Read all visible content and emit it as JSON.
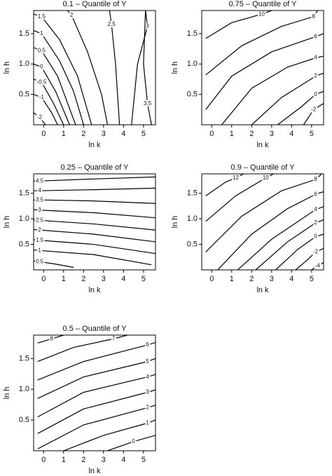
{
  "chart_data": [
    {
      "type": "contour",
      "title": "0.1 – Quantile of Y",
      "xlabel": "ln k",
      "ylabel": "ln h",
      "xlim": [
        -0.5,
        5.6
      ],
      "ylim": [
        0,
        1.88
      ],
      "xticks": [
        0,
        1,
        2,
        3,
        4,
        5
      ],
      "yticks": [
        0.5,
        {
          "value": 1,
          "label": "1.0"
        },
        1.5
      ],
      "contours": [
        {
          "level": 1.5,
          "x": [
            2.4,
            1.7,
            0.8,
            -0.1,
            -0.5
          ],
          "y": [
            0,
            0.8,
            1.4,
            1.78,
            1.82
          ]
        },
        {
          "level": 1,
          "x": [
            2.0,
            1.5,
            0.8,
            -0.1,
            -0.5
          ],
          "y": [
            0,
            0.55,
            1.05,
            1.5,
            1.55
          ]
        },
        {
          "level": 0.5,
          "x": [
            1.6,
            0.7,
            -0.1,
            -0.5
          ],
          "y": [
            0,
            0.8,
            1.22,
            1.27
          ]
        },
        {
          "level": 0,
          "x": [
            1.3,
            0.6,
            -0.1,
            -0.5
          ],
          "y": [
            0,
            0.55,
            0.95,
            1.0
          ]
        },
        {
          "level": -0.5,
          "x": [
            1.0,
            0.5,
            -0.1,
            -0.5
          ],
          "y": [
            0,
            0.35,
            0.7,
            0.75
          ]
        },
        {
          "level": -1,
          "x": [
            0.7,
            0.4,
            -0.1,
            -0.5
          ],
          "y": [
            0,
            0.2,
            0.45,
            0.5
          ]
        },
        {
          "level": -2,
          "x": [
            0.1,
            -0.2,
            -0.5
          ],
          "y": [
            0,
            0.12,
            0.2
          ]
        },
        {
          "level": 2,
          "x": [
            3.2,
            2.9,
            2.2,
            1.4,
            1.2
          ],
          "y": [
            0,
            0.5,
            1.2,
            1.8,
            1.88
          ]
        },
        {
          "level": 2.5,
          "x": [
            3.8,
            3.6,
            3.4,
            3.3
          ],
          "y": [
            0,
            1.0,
            1.65,
            1.88
          ]
        },
        {
          "level": 3,
          "x": [
            4.4,
            4.7,
            5.2,
            5.1
          ],
          "y": [
            0,
            1.0,
            1.62,
            1.88
          ]
        },
        {
          "level": 3.5,
          "x": [
            5.1,
            5.0,
            5.2,
            5.4
          ],
          "y": [
            1.88,
            1.0,
            0.35,
            0
          ]
        }
      ]
    },
    {
      "type": "contour",
      "title": "0.75 – Quantile of Y",
      "xlabel": "ln k",
      "ylabel": "ln h",
      "xlim": [
        -0.5,
        5.6
      ],
      "ylim": [
        0,
        1.88
      ],
      "xticks": [
        0,
        1,
        2,
        3,
        4,
        5
      ],
      "yticks": [
        0.5,
        {
          "value": 1,
          "label": "1.0"
        },
        1.5
      ],
      "contours": [
        {
          "level": 10,
          "x": [
            -0.3,
            1.0,
            2.5,
            3.0
          ],
          "y": [
            1.42,
            1.68,
            1.82,
            1.88
          ]
        },
        {
          "level": 8,
          "x": [
            -0.3,
            1.5,
            3.5,
            5.1,
            5.3
          ],
          "y": [
            0.82,
            1.3,
            1.62,
            1.78,
            1.88
          ]
        },
        {
          "level": 6,
          "x": [
            -0.3,
            1.0,
            3.0,
            5.2,
            5.6
          ],
          "y": [
            0.25,
            0.8,
            1.2,
            1.45,
            1.5
          ]
        },
        {
          "level": 4,
          "x": [
            0.5,
            2.0,
            3.8,
            5.2,
            5.6
          ],
          "y": [
            0,
            0.6,
            0.95,
            1.1,
            1.13
          ]
        },
        {
          "level": 2,
          "x": [
            2.0,
            3.5,
            5.2,
            5.6
          ],
          "y": [
            0,
            0.45,
            0.8,
            0.85
          ]
        },
        {
          "level": 0,
          "x": [
            3.3,
            4.5,
            5.2,
            5.6
          ],
          "y": [
            0,
            0.3,
            0.5,
            0.55
          ]
        },
        {
          "level": -2,
          "x": [
            4.6,
            5.1,
            5.6
          ],
          "y": [
            0,
            0.25,
            0.35
          ]
        }
      ]
    },
    {
      "type": "contour",
      "title": "0.25 – Quantile of Y",
      "xlabel": "ln k",
      "ylabel": "ln h",
      "xlim": [
        -0.5,
        5.6
      ],
      "ylim": [
        0,
        1.88
      ],
      "xticks": [
        0,
        1,
        2,
        3,
        4,
        5
      ],
      "yticks": [
        0.5,
        {
          "value": 1,
          "label": "1.0"
        },
        1.5
      ],
      "contours": [
        {
          "level": 4.5,
          "x": [
            5.6,
            2.5,
            -0.2,
            -0.5
          ],
          "y": [
            1.82,
            1.78,
            1.74,
            1.74
          ]
        },
        {
          "level": 4,
          "x": [
            5.6,
            2.5,
            -0.2,
            -0.5
          ],
          "y": [
            1.6,
            1.57,
            1.55,
            1.55
          ]
        },
        {
          "level": 3.5,
          "x": [
            5.6,
            2.5,
            -0.2,
            -0.5
          ],
          "y": [
            1.3,
            1.35,
            1.37,
            1.37
          ]
        },
        {
          "level": 3,
          "x": [
            5.6,
            2.5,
            -0.2,
            -0.5
          ],
          "y": [
            1.02,
            1.12,
            1.17,
            1.18
          ]
        },
        {
          "level": 2.5,
          "x": [
            5.6,
            2.5,
            -0.2,
            -0.5
          ],
          "y": [
            0.78,
            0.9,
            0.97,
            0.98
          ]
        },
        {
          "level": 2,
          "x": [
            5.6,
            2.5,
            -0.2,
            -0.5
          ],
          "y": [
            0.55,
            0.7,
            0.78,
            0.79
          ]
        },
        {
          "level": 1.5,
          "x": [
            5.6,
            2.5,
            -0.2,
            -0.5
          ],
          "y": [
            0.32,
            0.5,
            0.58,
            0.59
          ]
        },
        {
          "level": 1,
          "x": [
            5.4,
            2.5,
            -0.2,
            -0.5
          ],
          "y": [
            0.1,
            0.3,
            0.38,
            0.39
          ]
        },
        {
          "level": 0.5,
          "x": [
            1.5,
            0.5,
            -0.2,
            -0.5
          ],
          "y": [
            0.05,
            0.12,
            0.16,
            0.17
          ]
        }
      ]
    },
    {
      "type": "contour",
      "title": "0.9 – Quantile of Y",
      "xlabel": "ln k",
      "ylabel": "ln h",
      "xlim": [
        -0.5,
        5.6
      ],
      "ylim": [
        0,
        1.88
      ],
      "xticks": [
        0,
        1,
        2,
        3,
        4,
        5
      ],
      "yticks": [
        0.5,
        {
          "value": 1,
          "label": "1.0"
        },
        1.5
      ],
      "contours": [
        {
          "level": 12,
          "x": [
            -0.3,
            0.7,
            1.2,
            1.6
          ],
          "y": [
            1.45,
            1.72,
            1.8,
            1.88
          ]
        },
        {
          "level": 10,
          "x": [
            -0.3,
            1.2,
            2.7,
            3.1
          ],
          "y": [
            0.95,
            1.45,
            1.8,
            1.88
          ]
        },
        {
          "level": 8,
          "x": [
            -0.3,
            1.5,
            3.5,
            5.2,
            5.5
          ],
          "y": [
            0.35,
            1.05,
            1.55,
            1.77,
            1.88
          ]
        },
        {
          "level": 6,
          "x": [
            0.3,
            2.0,
            3.8,
            5.2,
            5.6
          ],
          "y": [
            0,
            0.7,
            1.2,
            1.48,
            1.53
          ]
        },
        {
          "level": 4,
          "x": [
            1.3,
            3.0,
            5.2,
            5.6
          ],
          "y": [
            0,
            0.6,
            1.18,
            1.24
          ]
        },
        {
          "level": 2,
          "x": [
            2.2,
            3.8,
            5.2,
            5.6
          ],
          "y": [
            0,
            0.55,
            0.92,
            0.98
          ]
        },
        {
          "level": 0,
          "x": [
            3.2,
            4.3,
            5.2,
            5.6
          ],
          "y": [
            0,
            0.4,
            0.65,
            0.7
          ]
        },
        {
          "level": -2,
          "x": [
            4.2,
            4.8,
            5.2,
            5.6
          ],
          "y": [
            0,
            0.2,
            0.35,
            0.42
          ]
        },
        {
          "level": -4,
          "x": [
            5.0,
            5.3,
            5.6
          ],
          "y": [
            0,
            0.08,
            0.14
          ]
        }
      ]
    },
    {
      "type": "contour",
      "title": "0.5 – Quantile of Y",
      "xlabel": "ln k",
      "ylabel": "ln h",
      "xlim": [
        -0.5,
        5.6
      ],
      "ylim": [
        0,
        1.88
      ],
      "xticks": [
        0,
        1,
        2,
        3,
        4,
        5
      ],
      "yticks": [
        0.5,
        {
          "value": 1,
          "label": "1.0"
        },
        1.5
      ],
      "contours": [
        {
          "level": 8,
          "x": [
            -0.3,
            0.4,
            1.0
          ],
          "y": [
            1.75,
            1.82,
            1.88
          ]
        },
        {
          "level": 7,
          "x": [
            -0.3,
            1.5,
            3.5,
            4.2
          ],
          "y": [
            1.45,
            1.68,
            1.82,
            1.88
          ]
        },
        {
          "level": 6,
          "x": [
            -0.3,
            2.0,
            5.2,
            5.6
          ],
          "y": [
            1.15,
            1.45,
            1.72,
            1.76
          ]
        },
        {
          "level": 5,
          "x": [
            -0.3,
            2.0,
            5.2,
            5.6
          ],
          "y": [
            0.85,
            1.2,
            1.45,
            1.5
          ]
        },
        {
          "level": 4,
          "x": [
            -0.3,
            2.0,
            5.2,
            5.6
          ],
          "y": [
            0.55,
            0.95,
            1.2,
            1.24
          ]
        },
        {
          "level": 3,
          "x": [
            -0.3,
            2.0,
            5.2,
            5.6
          ],
          "y": [
            0.28,
            0.68,
            0.95,
            0.99
          ]
        },
        {
          "level": 2,
          "x": [
            -0.3,
            2.0,
            5.2,
            5.6
          ],
          "y": [
            0.03,
            0.42,
            0.7,
            0.74
          ]
        },
        {
          "level": 1,
          "x": [
            1.0,
            3.0,
            5.2,
            5.6
          ],
          "y": [
            0,
            0.25,
            0.45,
            0.5
          ]
        },
        {
          "level": 0,
          "x": [
            3.2,
            4.5,
            5.6
          ],
          "y": [
            0,
            0.15,
            0.25
          ]
        }
      ]
    }
  ]
}
